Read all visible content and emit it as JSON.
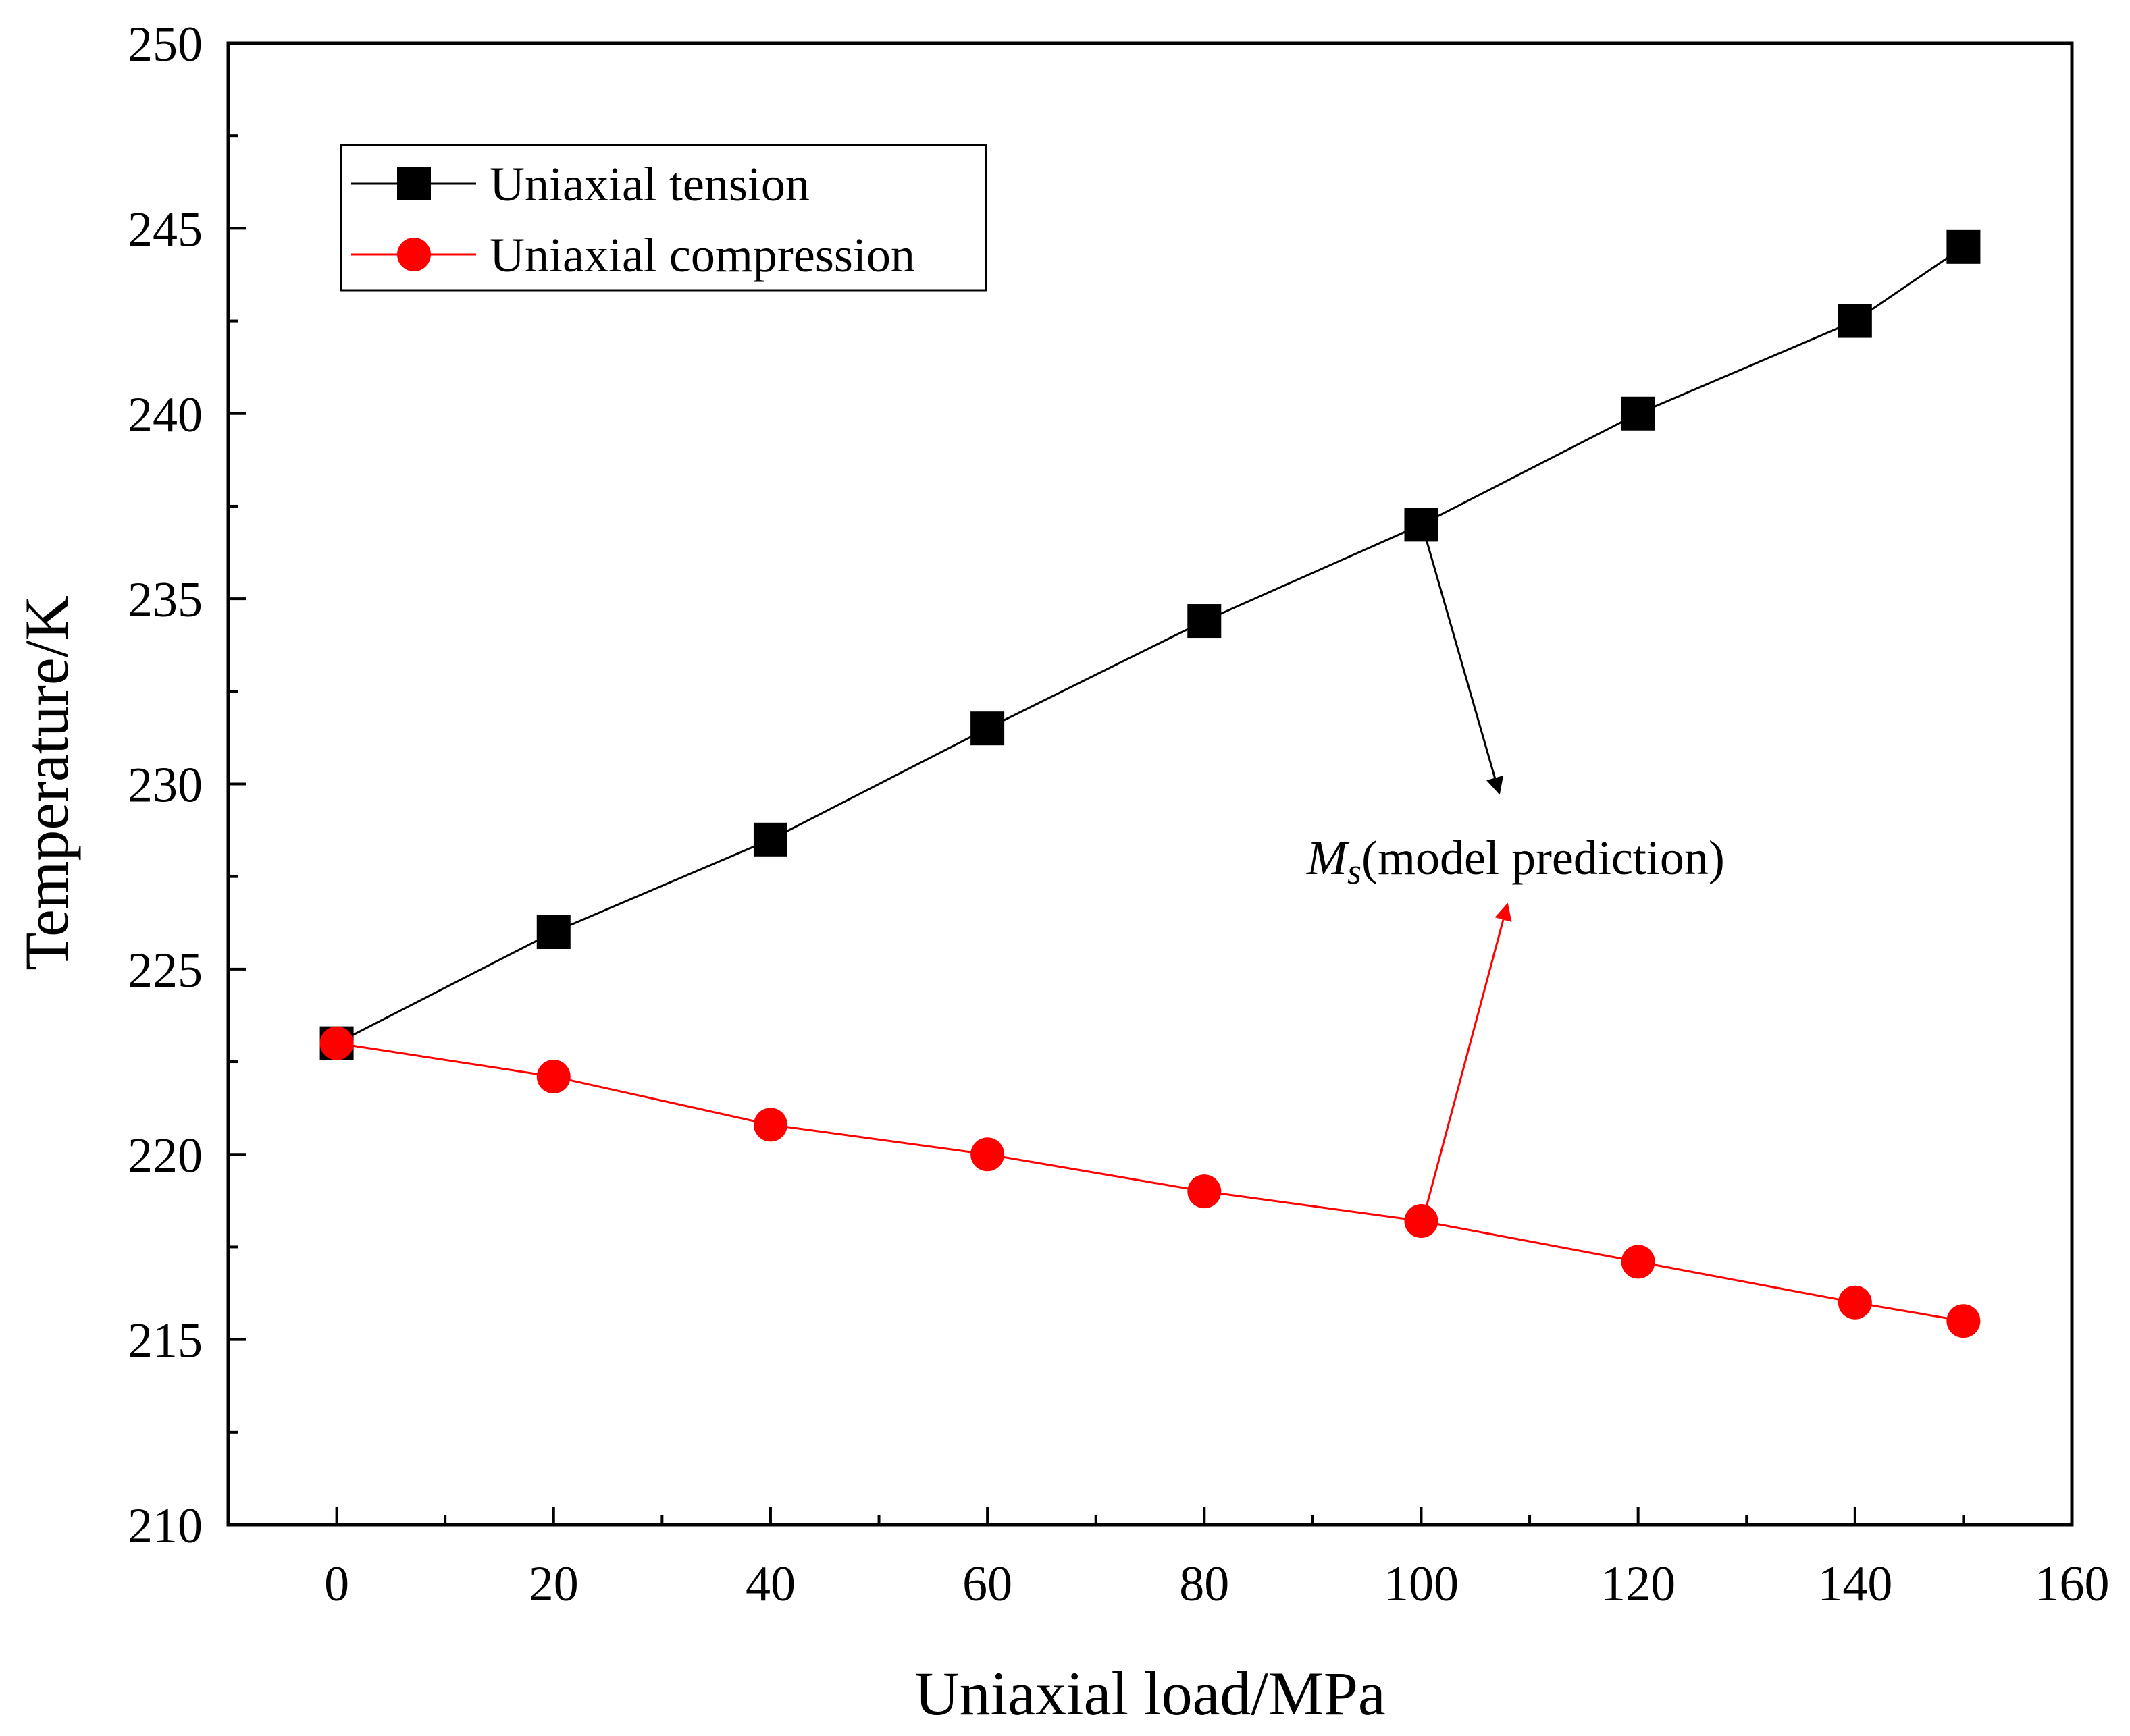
{
  "chart_data": {
    "type": "line",
    "title": "",
    "xlabel": "Uniaxial load/MPa",
    "ylabel": "Temperature/K",
    "xlim": [
      -10,
      160
    ],
    "ylim": [
      210,
      250
    ],
    "x_ticks": [
      0,
      20,
      40,
      60,
      80,
      100,
      120,
      140,
      160
    ],
    "x_tick_labels": [
      "0",
      "20",
      "40",
      "60",
      "80",
      "100",
      "120",
      "140",
      "160"
    ],
    "y_ticks": [
      210,
      215,
      220,
      225,
      230,
      235,
      240,
      245,
      250
    ],
    "y_tick_labels": [
      "210",
      "215",
      "220",
      "225",
      "230",
      "235",
      "240",
      "245",
      "250"
    ],
    "grid": false,
    "legend_position": "top-left",
    "series": [
      {
        "name": "Uniaxial tension",
        "marker": "square",
        "color": "#000000",
        "x": [
          0,
          20,
          40,
          60,
          80,
          100,
          120,
          140,
          150
        ],
        "y": [
          223.0,
          226.0,
          228.5,
          231.5,
          234.4,
          237.0,
          240.0,
          242.5,
          244.5
        ]
      },
      {
        "name": "Uniaxial compression",
        "marker": "circle",
        "color": "#ff0000",
        "x": [
          0,
          20,
          40,
          60,
          80,
          100,
          120,
          140,
          150
        ],
        "y": [
          223.0,
          222.1,
          220.8,
          220.0,
          219.0,
          218.2,
          217.1,
          216.0,
          215.5
        ]
      }
    ],
    "annotation": {
      "main": "M",
      "subscript": "s",
      "rest": "(model prediction)"
    }
  }
}
